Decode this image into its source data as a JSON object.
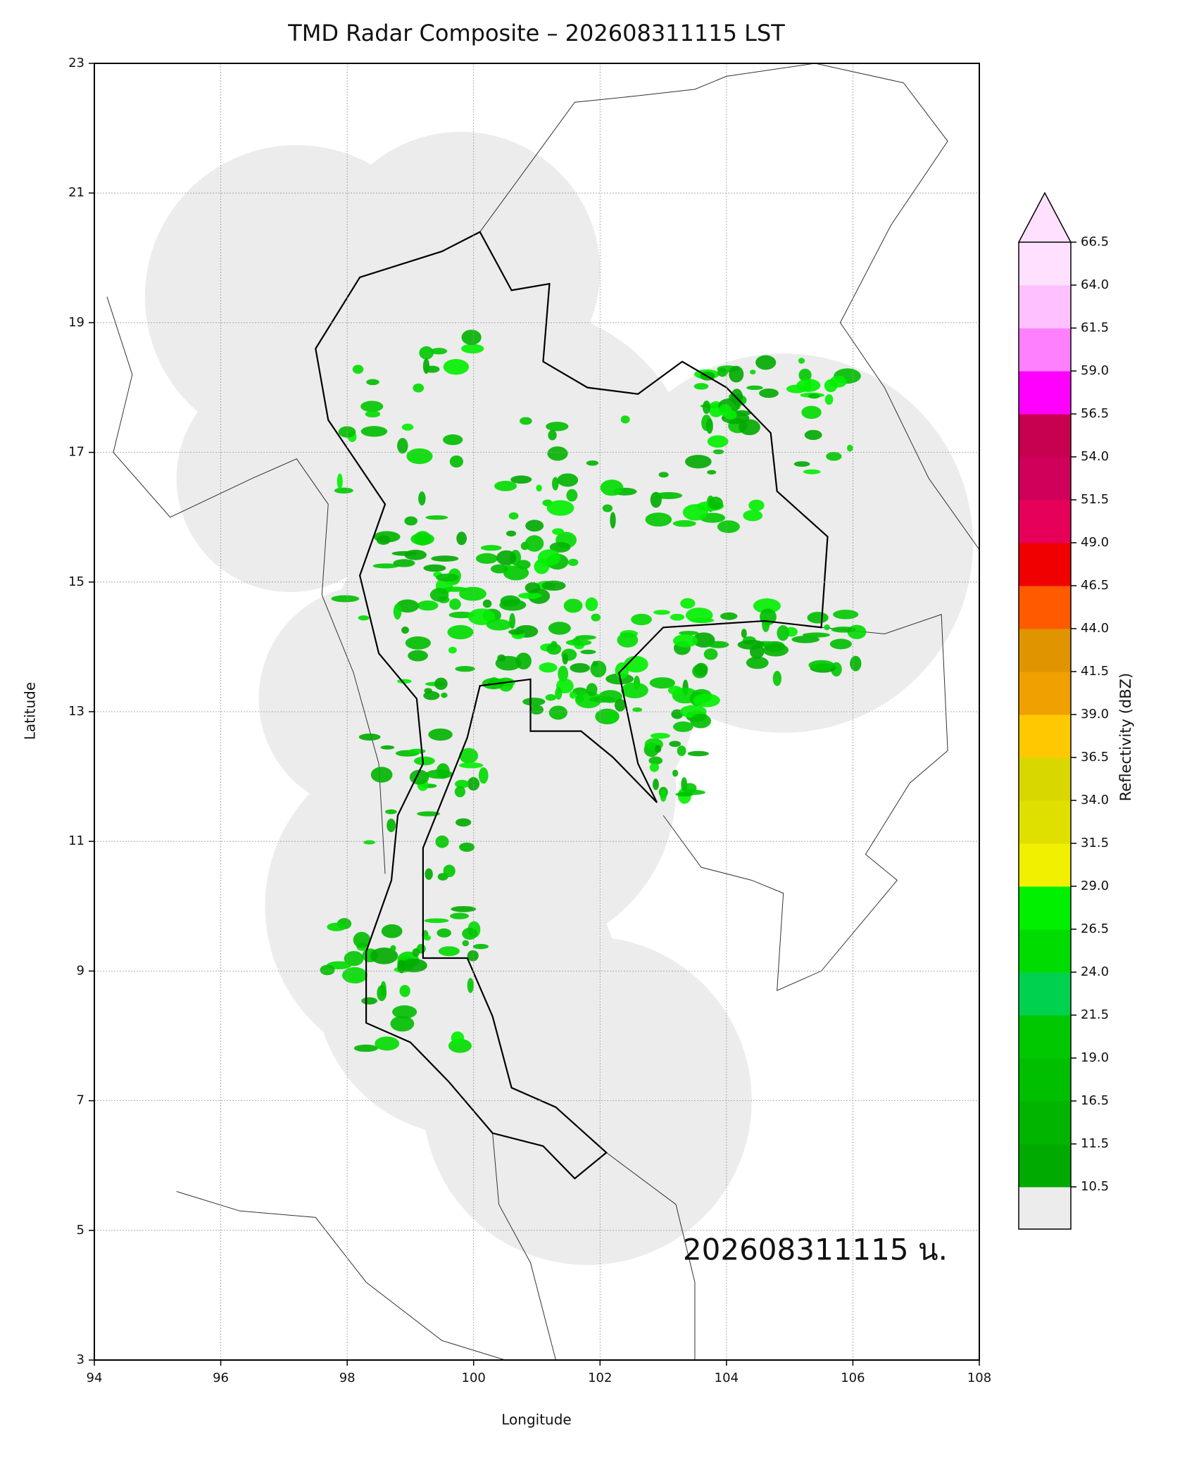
{
  "chart_data": {
    "type": "radar-map",
    "title": "TMD Radar Composite – 202608311115 LST",
    "xlabel": "Longitude",
    "ylabel": "Latitude",
    "xlim": [
      94,
      108
    ],
    "ylim": [
      3,
      23
    ],
    "xticks": [
      94,
      96,
      98,
      100,
      102,
      104,
      106,
      108
    ],
    "yticks": [
      3,
      5,
      7,
      9,
      11,
      13,
      15,
      17,
      19,
      21,
      23
    ],
    "grid": true,
    "coverage_color": "#ececec",
    "annotation": "202608311115 น.",
    "colorbar": {
      "label": "Reflectivity (dBZ)",
      "extend": "max",
      "under_color": "#ececec",
      "ticks": [
        10.5,
        11.5,
        16.5,
        {
          "value": 19,
          "label": "19.0"
        },
        21.5,
        {
          "value": 24,
          "label": "24.0"
        },
        26.5,
        {
          "value": 29,
          "label": "29.0"
        },
        31.5,
        {
          "value": 34,
          "label": "34.0"
        },
        36.5,
        {
          "value": 39,
          "label": "39.0"
        },
        41.5,
        {
          "value": 44,
          "label": "44.0"
        },
        46.5,
        {
          "value": 49,
          "label": "49.0"
        },
        51.5,
        {
          "value": 54,
          "label": "54.0"
        },
        56.5,
        {
          "value": 59,
          "label": "59.0"
        },
        61.5,
        {
          "value": 64,
          "label": "64.0"
        },
        66.5
      ],
      "colors": [
        "#00aa00",
        "#00b400",
        "#00be00",
        "#00c800",
        "#00d250",
        "#00dc00",
        "#00f000",
        "#f0f000",
        "#e0e000",
        "#d8d800",
        "#ffc800",
        "#f0a000",
        "#e09400",
        "#ff5a00",
        "#f00000",
        "#e6005a",
        "#d0005a",
        "#c80050",
        "#ff00ff",
        "#ff80ff",
        "#ffc0ff",
        "#ffe0ff"
      ]
    }
  }
}
